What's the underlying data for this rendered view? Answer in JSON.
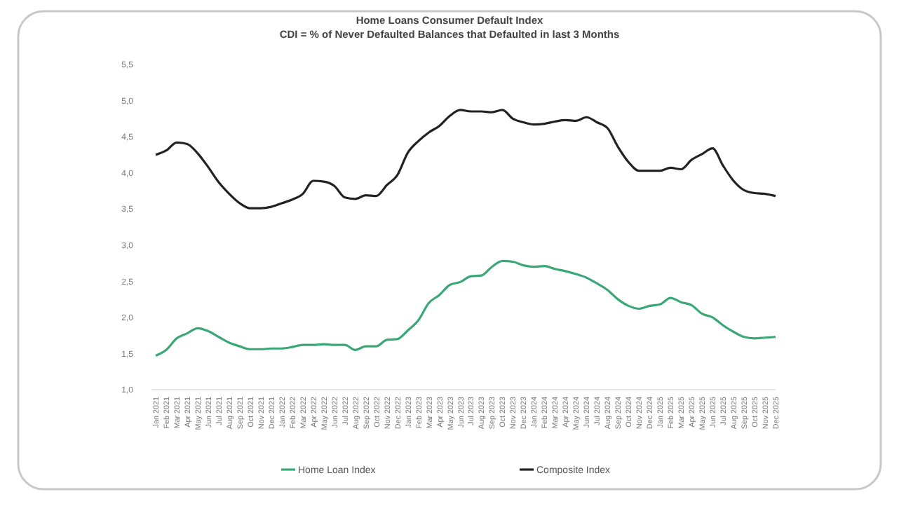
{
  "chart_data": {
    "type": "line",
    "title": "Home Loans Consumer Default Index",
    "subtitle": "CDI = % of Never Defaulted Balances that Defaulted in last 3 Months",
    "categories": [
      "Jan 2021",
      "Feb 2021",
      "Mar 2021",
      "Apr 2021",
      "May 2021",
      "Jun 2021",
      "Jul 2021",
      "Aug 2021",
      "Sep 2021",
      "Oct 2021",
      "Nov 2021",
      "Dec 2021",
      "Jan 2022",
      "Feb 2022",
      "Mar 2022",
      "Apr 2022",
      "May 2022",
      "Jun 2022",
      "Jul 2022",
      "Aug 2022",
      "Sep 2022",
      "Oct 2022",
      "Nov 2022",
      "Dec 2022",
      "Jan 2023",
      "Feb 2023",
      "Mar 2023",
      "Apr 2023",
      "May 2023",
      "Jun 2023",
      "Jul 2023",
      "Aug 2023",
      "Sep 2023",
      "Oct 2023",
      "Nov 2023",
      "Dec 2023",
      "Jan 2024",
      "Feb 2024",
      "Mar 2024",
      "Apr 2024",
      "May 2024",
      "Jun 2024",
      "Jul 2024",
      "Aug 2024",
      "Sep 2024",
      "Oct 2024",
      "Nov 2024",
      "Dec 2024",
      "Jan 2025",
      "Feb 2025",
      "Mar 2025",
      "Apr 2025",
      "May 2025",
      "Jun 2025",
      "Jul 2025",
      "Aug 2025",
      "Sep 2025",
      "Oct 2025",
      "Nov 2025",
      "Dec 2025"
    ],
    "series": [
      {
        "name": "Home Loan Index",
        "color": "#3aa876",
        "values": [
          1.47,
          1.55,
          1.71,
          1.78,
          1.85,
          1.81,
          1.73,
          1.65,
          1.6,
          1.56,
          1.56,
          1.57,
          1.57,
          1.59,
          1.62,
          1.62,
          1.63,
          1.62,
          1.62,
          1.55,
          1.6,
          1.6,
          1.69,
          1.7,
          1.82,
          1.96,
          2.2,
          2.31,
          2.45,
          2.49,
          2.57,
          2.58,
          2.7,
          2.78,
          2.77,
          2.72,
          2.7,
          2.71,
          2.67,
          2.64,
          2.6,
          2.55,
          2.47,
          2.38,
          2.25,
          2.16,
          2.12,
          2.16,
          2.18,
          2.27,
          2.21,
          2.17,
          2.05,
          2.0,
          1.89,
          1.8,
          1.73,
          1.71,
          1.72,
          1.73
        ]
      },
      {
        "name": "Composite Index",
        "color": "#222222",
        "values": [
          4.25,
          4.31,
          4.42,
          4.4,
          4.27,
          4.08,
          3.87,
          3.71,
          3.58,
          3.51,
          3.51,
          3.53,
          3.58,
          3.63,
          3.71,
          3.89,
          3.88,
          3.82,
          3.66,
          3.64,
          3.69,
          3.68,
          3.83,
          3.97,
          4.28,
          4.44,
          4.56,
          4.65,
          4.79,
          4.87,
          4.85,
          4.85,
          4.84,
          4.87,
          4.75,
          4.7,
          4.67,
          4.68,
          4.71,
          4.73,
          4.72,
          4.77,
          4.7,
          4.62,
          4.36,
          4.15,
          4.03,
          4.03,
          4.03,
          4.07,
          4.05,
          4.18,
          4.26,
          4.34,
          4.1,
          3.89,
          3.76,
          3.72,
          3.71,
          3.68
        ]
      }
    ],
    "ylim": [
      1,
      5.5
    ],
    "yticks": [
      {
        "value": 1,
        "label": "1,0"
      },
      {
        "value": 1.5,
        "label": "1,5"
      },
      {
        "value": 2,
        "label": "2,0"
      },
      {
        "value": 2.5,
        "label": "2,5"
      },
      {
        "value": 3,
        "label": "3,0"
      },
      {
        "value": 3.5,
        "label": "3,5"
      },
      {
        "value": 4,
        "label": "4,0"
      },
      {
        "value": 4.5,
        "label": "4,5"
      },
      {
        "value": 5,
        "label": "5,0"
      },
      {
        "value": 5.5,
        "label": "5,5"
      }
    ],
    "grid": false,
    "legend": "bottom",
    "marker": "none",
    "line_style": "solid"
  }
}
